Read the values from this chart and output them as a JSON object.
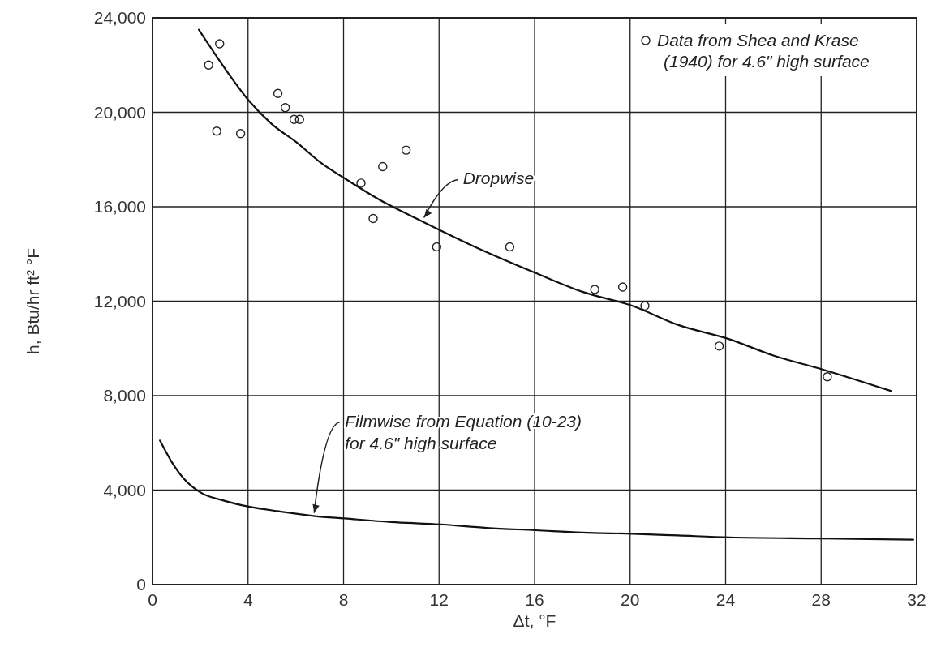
{
  "chart_data": {
    "type": "line",
    "xlabel": "Δt, °F",
    "ylabel": "h, Btu/hr ft² °F",
    "xlim": [
      0,
      32
    ],
    "xticks": [
      0,
      4,
      8,
      12,
      16,
      20,
      24,
      28,
      32
    ],
    "ylim": [
      0,
      24000
    ],
    "yticks": [
      {
        "value": 0,
        "label": "0"
      },
      {
        "value": 4000,
        "label": "4,000"
      },
      {
        "value": 8000,
        "label": "8,000"
      },
      {
        "value": 12000,
        "label": "12,000"
      },
      {
        "value": 16000,
        "label": "16,000"
      },
      {
        "value": 20000,
        "label": "20,000"
      },
      {
        "value": 24000,
        "label": "24,000"
      }
    ],
    "grid": true,
    "legend": "top right",
    "series": [
      {
        "name": "Data from Shea and Krase (1940) for 4.6\" high surface",
        "type": "scatter",
        "marker": "circle",
        "color": "#222222",
        "x": [
          2.81,
          2.35,
          2.69,
          3.69,
          5.25,
          5.56,
          5.93,
          6.16,
          8.73,
          9.24,
          9.64,
          10.62,
          11.9,
          14.96,
          18.52,
          19.69,
          20.62,
          23.73,
          28.26
        ],
        "values": [
          22900,
          22000,
          19200,
          19100,
          20800,
          20200,
          19700,
          19700,
          17000,
          15500,
          17700,
          18400,
          14300,
          14300,
          12500,
          12600,
          11800,
          10100,
          8800
        ]
      },
      {
        "color": "#111111",
        "x": [
          1.94,
          3,
          4.03,
          5,
          6.07,
          7,
          8.05,
          9.5,
          11.05,
          13.5,
          16.03,
          18,
          20.1,
          22,
          24.13,
          26,
          28.09,
          30.92
        ],
        "values": [
          23500,
          21900,
          20500,
          19500,
          18700,
          17900,
          17200,
          16300,
          15500,
          14300,
          13200,
          12400,
          11800,
          11000,
          10400,
          9700,
          9100,
          8200
        ]
      },
      {
        "color": "#111111",
        "x": [
          0.31,
          0.8,
          1.3,
          2.01,
          3,
          4.03,
          5.3,
          6.8,
          8.05,
          10,
          12.04,
          14,
          16.05,
          18,
          20.1,
          22,
          24.16,
          28,
          31.86
        ],
        "values": [
          6100,
          5200,
          4500,
          3900,
          3550,
          3300,
          3100,
          2900,
          2800,
          2650,
          2550,
          2400,
          2300,
          2200,
          2150,
          2080,
          2000,
          1950,
          1900
        ]
      }
    ],
    "annotations": [
      {
        "text": "Dropwise",
        "x": 11.3,
        "y": 15400
      },
      {
        "text": "Filmwise from Equation (10-23)\nfor 4.6\" high surface",
        "x": 6.7,
        "y": 2900
      }
    ]
  }
}
